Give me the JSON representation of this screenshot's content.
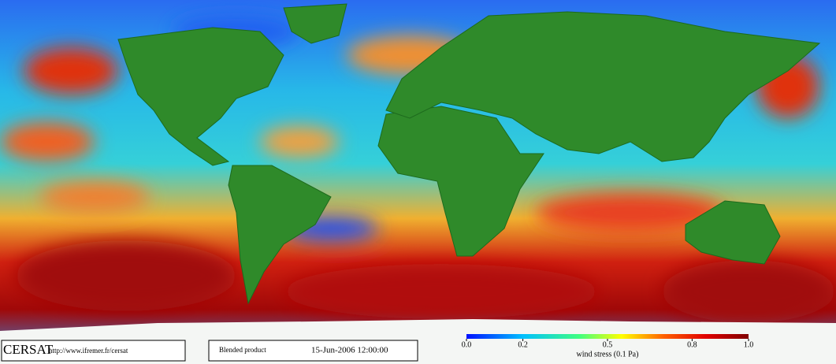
{
  "footer": {
    "logo": "CERSAT",
    "url": "http://www.ifremer.fr/cersat",
    "product": "Blended product",
    "date": "15-Jun-2006 12:00:00"
  },
  "colorbar": {
    "label": "wind stress (0.1 Pa)",
    "lim": [
      0,
      1
    ],
    "ticks": [
      {
        "value": 0,
        "label": "0.0"
      },
      {
        "value": 0.2,
        "label": "0.2"
      },
      {
        "value": 0.5,
        "label": "0.5"
      },
      {
        "value": 0.8,
        "label": "0.8"
      },
      {
        "value": 1,
        "label": "1.0"
      }
    ]
  }
}
